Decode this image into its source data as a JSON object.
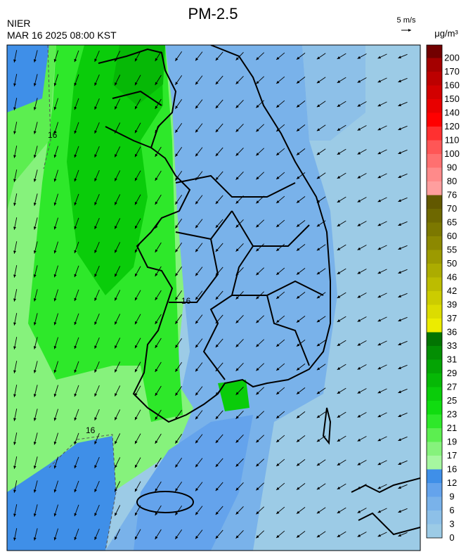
{
  "header": {
    "title": "PM-2.5",
    "source": "NIER",
    "datetime": "MAR 16 2025 08:00 KST",
    "wind_scale": "5 m/s"
  },
  "map": {
    "contour_labels": [
      "16",
      "16",
      "16"
    ]
  },
  "legend": {
    "unit": "μg/m³",
    "labels": [
      0,
      3,
      6,
      9,
      12,
      16,
      17,
      19,
      21,
      23,
      25,
      27,
      29,
      31,
      33,
      36,
      37,
      39,
      42,
      46,
      50,
      55,
      60,
      65,
      70,
      76,
      80,
      90,
      100,
      110,
      120,
      140,
      150,
      160,
      170,
      200
    ],
    "colors": [
      "#9ccbe6",
      "#8dc0e8",
      "#79b2ea",
      "#64a3ec",
      "#3f8fe8",
      "#a6f7a0",
      "#86f27c",
      "#5cee50",
      "#2ee82a",
      "#10dc10",
      "#0acc0a",
      "#06b806",
      "#04a404",
      "#038e03",
      "#027402",
      "#ecec00",
      "#dcdc00",
      "#cccc00",
      "#bcbc00",
      "#acac00",
      "#9c9a00",
      "#8c8800",
      "#7c7800",
      "#6e6800",
      "#625800",
      "#ff9e9e",
      "#ff8a8a",
      "#ff7070",
      "#ff5656",
      "#ff3030",
      "#ff0000",
      "#e80000",
      "#d20000",
      "#bc0000",
      "#a40000",
      "#720000"
    ]
  }
}
